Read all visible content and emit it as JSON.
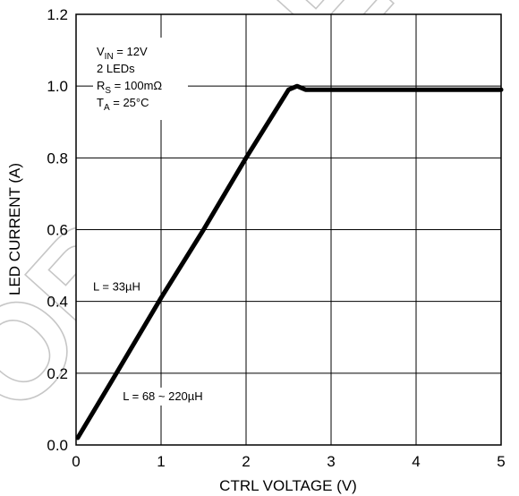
{
  "watermark": "OBSOLETE DESIGN",
  "chart_data": {
    "type": "line",
    "xlabel": "CTRL VOLTAGE (V)",
    "ylabel": "LED CURRENT (A)",
    "xlim": [
      0,
      5
    ],
    "ylim": [
      0,
      1.2
    ],
    "x_ticks": [
      "0",
      "1",
      "2",
      "3",
      "4",
      "5"
    ],
    "y_ticks": [
      "0.0",
      "0.2",
      "0.4",
      "0.6",
      "0.8",
      "1.0",
      "1.2"
    ],
    "grid": true,
    "conditions": [
      {
        "main": "V",
        "sub": "IN",
        "rest": " = 12V"
      },
      {
        "main": "2 LEDs",
        "sub": "",
        "rest": ""
      },
      {
        "main": "R",
        "sub": "S",
        "rest": " = 100mΩ"
      },
      {
        "main": "T",
        "sub": "A",
        "rest": " = 25°C"
      }
    ],
    "annotations": [
      {
        "text": "L = 33µH",
        "x": 0.2,
        "y": 0.43
      },
      {
        "text": "L = 68 ~ 220µH",
        "x": 0.55,
        "y": 0.125
      }
    ],
    "series": [
      {
        "x": [
          0.02,
          0.5,
          1.0,
          1.5,
          2.0,
          2.5,
          2.6,
          2.7,
          5.0
        ],
        "y": [
          0.02,
          0.21,
          0.41,
          0.6,
          0.8,
          0.99,
          1.0,
          0.99,
          0.99
        ]
      }
    ]
  }
}
